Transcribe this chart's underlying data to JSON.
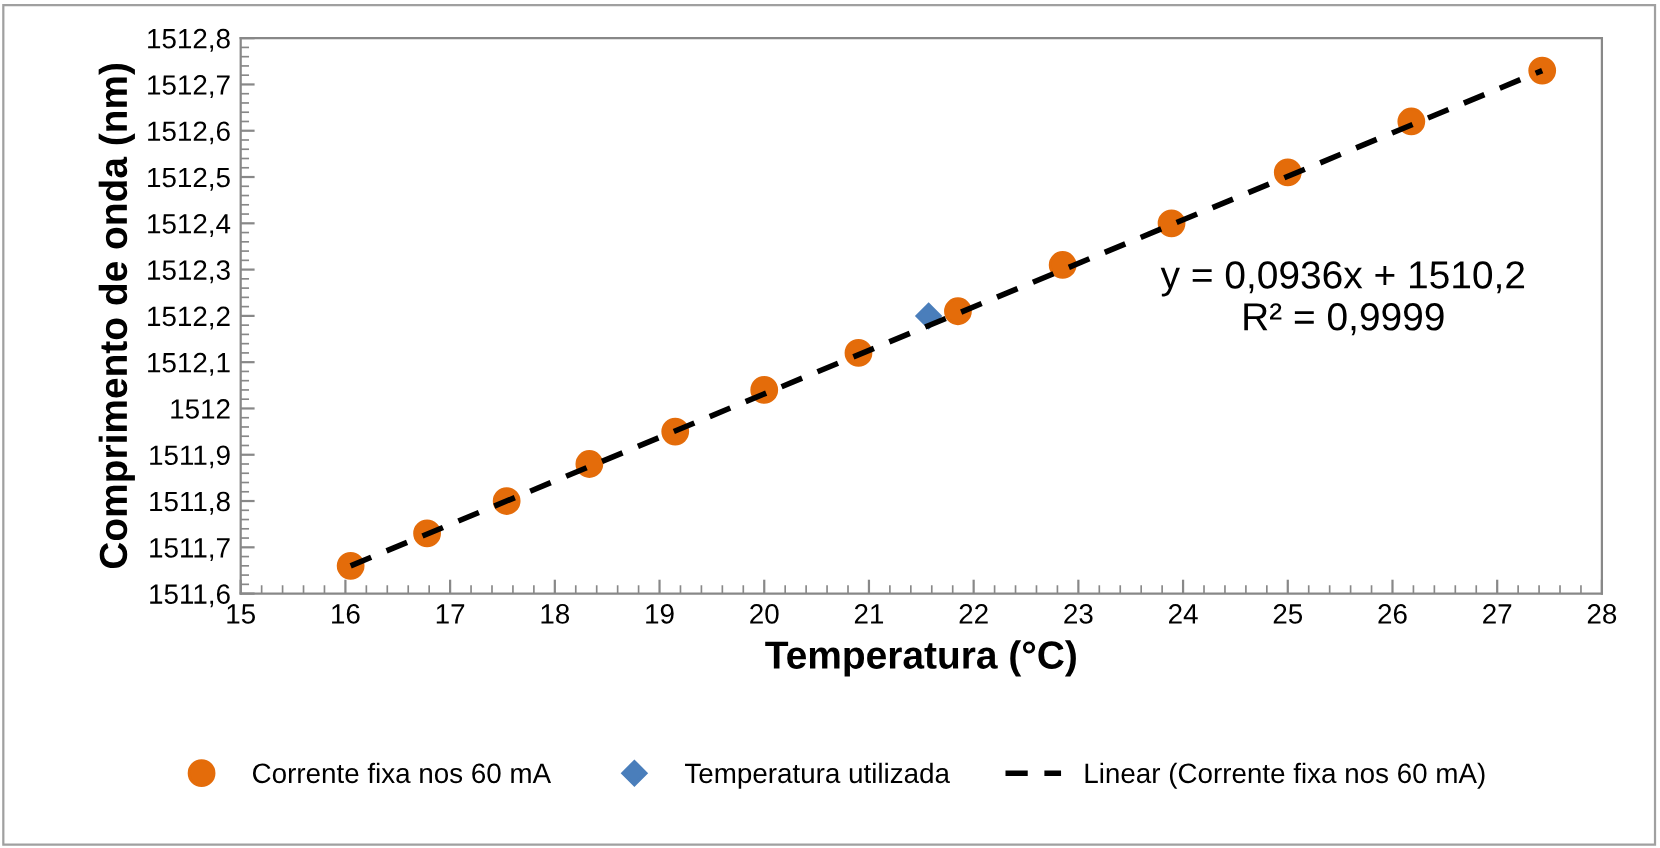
{
  "chart_data": {
    "type": "scatter",
    "xlabel": "Temperatura (°C)",
    "ylabel": "Comprimento de onda (nm)",
    "xlim": [
      15,
      28
    ],
    "xticks": [
      15,
      16,
      17,
      18,
      19,
      20,
      21,
      22,
      23,
      24,
      25,
      26,
      27,
      28
    ],
    "ylim": [
      1511.6,
      1512.8
    ],
    "yticks": [
      {
        "value": 1511.6,
        "label": "1511,6"
      },
      {
        "value": 1511.7,
        "label": "1511,7"
      },
      {
        "value": 1511.8,
        "label": "1511,8"
      },
      {
        "value": 1511.9,
        "label": "1511,9"
      },
      {
        "value": 1512,
        "label": "1512"
      },
      {
        "value": 1512.1,
        "label": "1512,1"
      },
      {
        "value": 1512.2,
        "label": "1512,2"
      },
      {
        "value": 1512.3,
        "label": "1512,3"
      },
      {
        "value": 1512.4,
        "label": "1512,4"
      },
      {
        "value": 1512.5,
        "label": "1512,5"
      },
      {
        "value": 1512.6,
        "label": "1512,6"
      },
      {
        "value": 1512.7,
        "label": "1512,7"
      },
      {
        "value": 1512.8,
        "label": "1512,8"
      }
    ],
    "grid": false,
    "legend": "bottom",
    "series": [
      {
        "name": "Corrente fixa nos 60 mA",
        "marker": "circle",
        "color": "#e46c0a",
        "x": [
          16.05,
          16.78,
          17.54,
          18.33,
          19.15,
          20.0,
          20.9,
          21.85,
          22.85,
          23.89,
          25.0,
          26.18,
          27.43
        ],
        "values": [
          1511.66,
          1511.73,
          1511.8,
          1511.88,
          1511.95,
          1512.04,
          1512.12,
          1512.21,
          1512.31,
          1512.4,
          1512.51,
          1512.62,
          1512.73
        ]
      },
      {
        "name": "Temperatura utilizada",
        "type": "scatter",
        "marker": "diamond",
        "color": "#4a7ebb",
        "x": [
          21.57
        ],
        "values": [
          1512.2
        ]
      },
      {
        "name": "Linear (Corrente fixa nos 60 mA)",
        "type": "line",
        "line_style": "dashed",
        "color": "#000000",
        "x": [
          16.05,
          27.43
        ],
        "values": [
          1511.66,
          1512.73
        ]
      }
    ],
    "annotations": [
      "y = 0,0936x + 1510,2\nR² = 0,9999"
    ]
  }
}
